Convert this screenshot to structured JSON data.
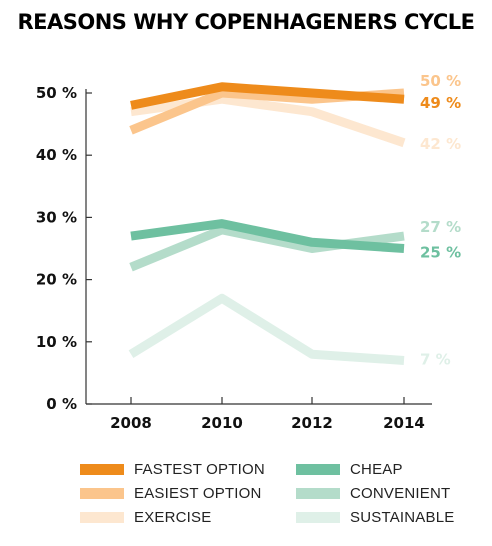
{
  "chart_data": {
    "type": "line",
    "title": "REASONS WHY COPENHAGENERS CYCLE",
    "x": [
      "2008",
      "2010",
      "2012",
      "2014"
    ],
    "ylim": [
      0,
      50
    ],
    "yticks": [
      "0 %",
      "10 %",
      "20 %",
      "30 %",
      "40 %",
      "50 %"
    ],
    "ytick_values": [
      0,
      10,
      20,
      30,
      40,
      50
    ],
    "grid": false,
    "legend_position": "bottom",
    "series": [
      {
        "name": "FASTEST OPTION",
        "values": [
          48,
          51,
          50,
          49
        ],
        "color": "#ee8b1b",
        "end_label": "49 %"
      },
      {
        "name": "EASIEST OPTION",
        "values": [
          44,
          50,
          49,
          50
        ],
        "color": "#fbc58c",
        "end_label": "50 %"
      },
      {
        "name": "EXERCISE",
        "values": [
          47,
          49,
          47,
          42
        ],
        "color": "#fde7d0",
        "end_label": "42 %"
      },
      {
        "name": "CHEAP",
        "values": [
          27,
          29,
          26,
          25
        ],
        "color": "#6ec0a0",
        "end_label": "25 %"
      },
      {
        "name": "CONVENIENT",
        "values": [
          22,
          28,
          25,
          27
        ],
        "color": "#b4dcca",
        "end_label": "27 %"
      },
      {
        "name": "SUSTAINABLE",
        "values": [
          8,
          17,
          8,
          7
        ],
        "color": "#dff0e8",
        "end_label": "7 %"
      }
    ]
  }
}
